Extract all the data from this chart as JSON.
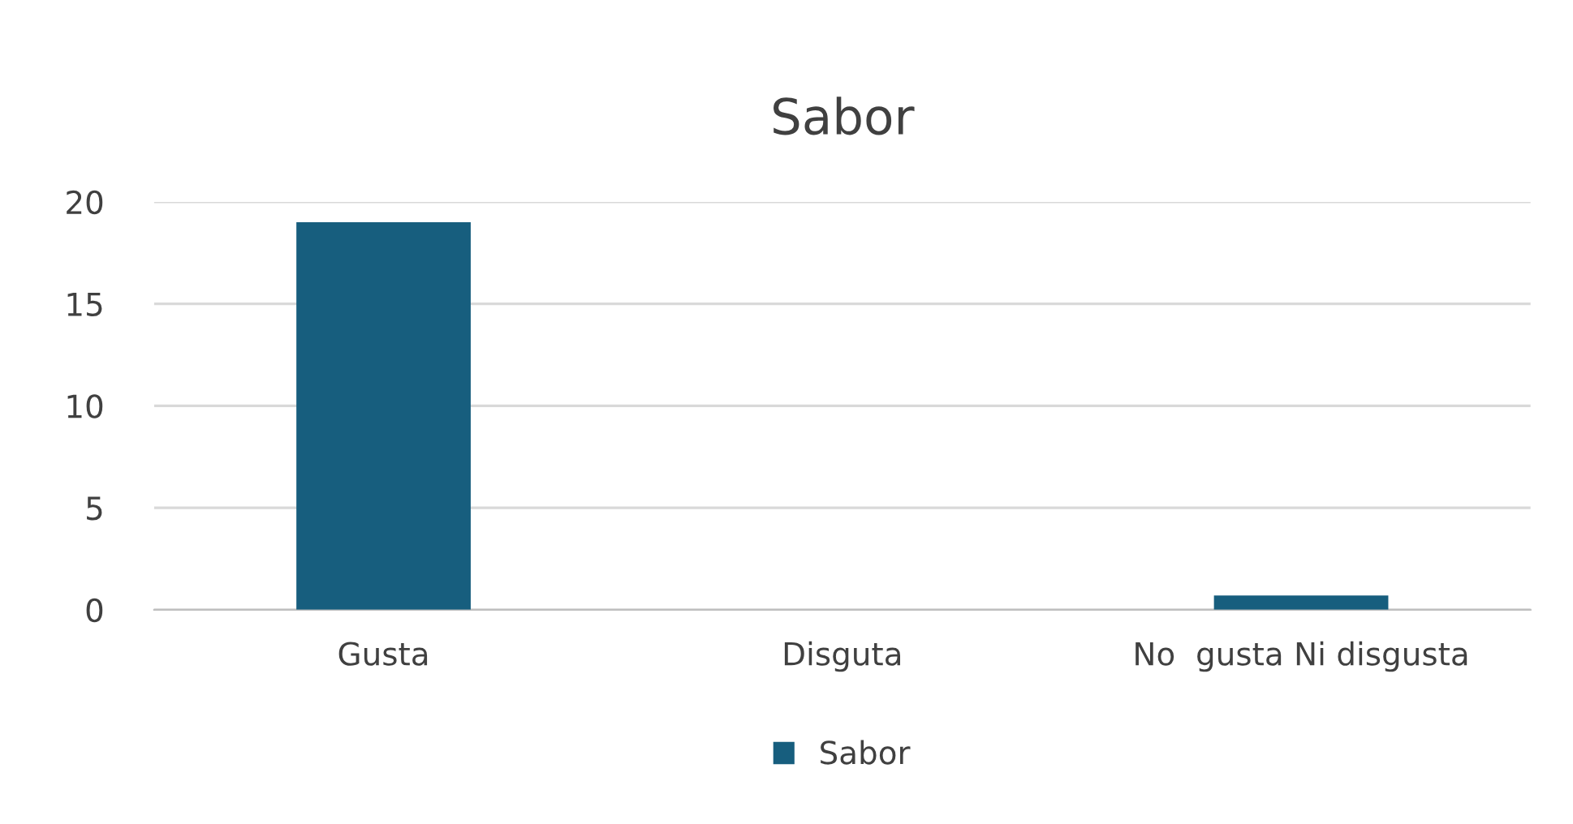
{
  "chart_data": {
    "type": "bar",
    "title": "Sabor",
    "categories": [
      "Gusta",
      "Disguta",
      "No  gusta Ni disgusta"
    ],
    "series": [
      {
        "name": "Sabor",
        "color": "#175e7e",
        "values": [
          19,
          0,
          0.7
        ]
      }
    ],
    "ylim": [
      0,
      20
    ],
    "yticks": [
      0,
      5,
      10,
      15,
      20
    ],
    "grid": "y",
    "legend": "bottom"
  }
}
